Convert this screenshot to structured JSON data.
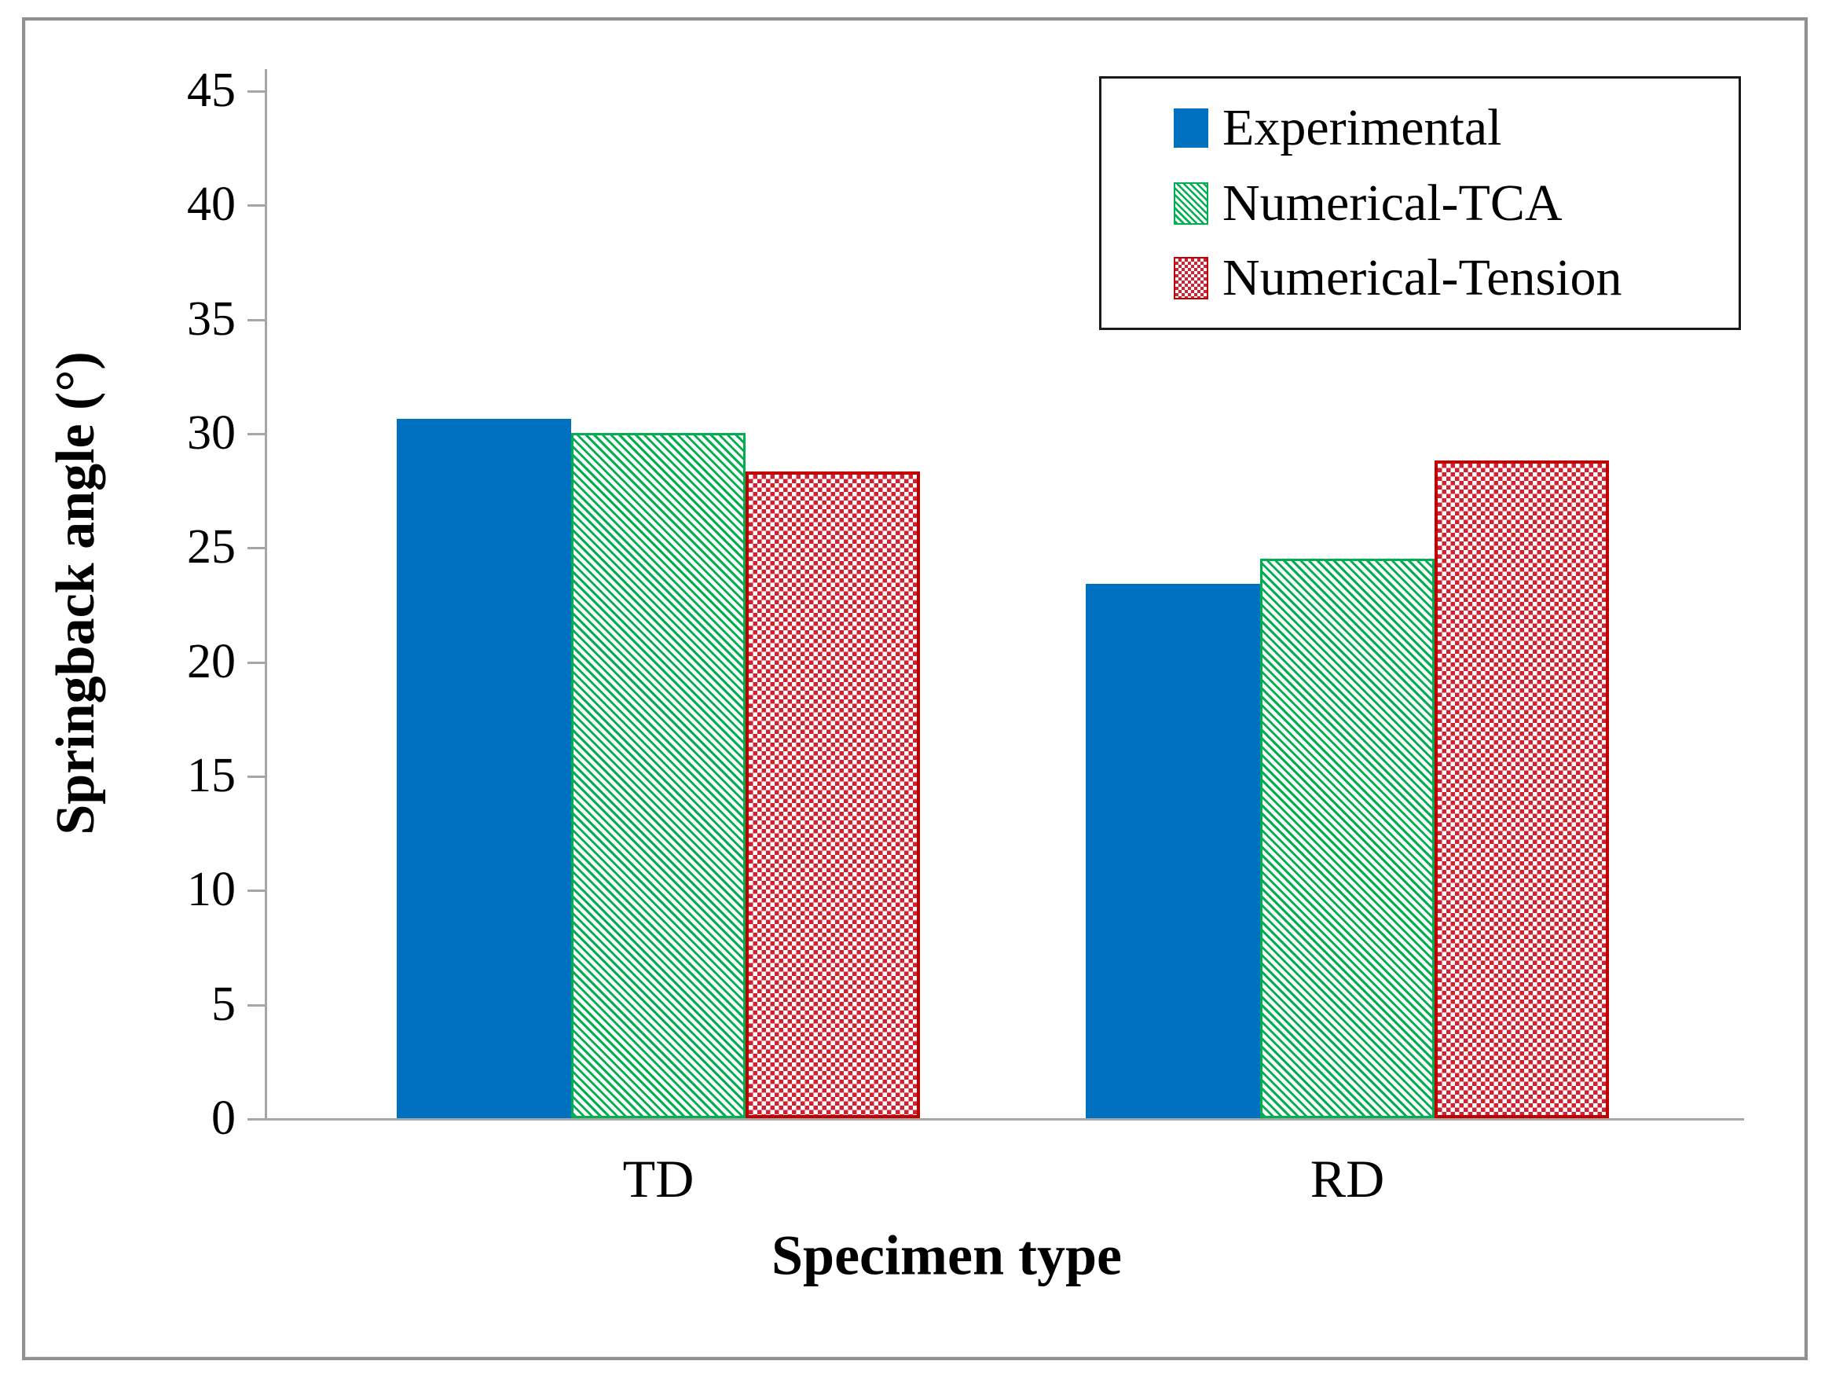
{
  "figure": {
    "background": "#ffffff",
    "frame_border_color": "#8e9094",
    "axis_color": "#a6a6a6",
    "text_color": "#000000",
    "legend_border_color": "#1a1a1a"
  },
  "colors": {
    "experimental_blue": "#0070c0",
    "numerical_tca_green": "#00b050",
    "numerical_tension_red": "#c00000",
    "numerical_tension_red_fill": "#cf2130"
  },
  "chart_data": {
    "type": "bar",
    "title": "",
    "xlabel": "Specimen type",
    "ylabel": "Springback angle (°)",
    "categories": [
      "TD",
      "RD"
    ],
    "series": [
      {
        "name": "Experimental",
        "pattern": "solid",
        "color": "#0070c0",
        "values": [
          30.6,
          23.4
        ]
      },
      {
        "name": "Numerical-TCA",
        "pattern": "diagonal-hatch",
        "color": "#00b050",
        "values": [
          30.0,
          24.5
        ]
      },
      {
        "name": "Numerical-Tension",
        "pattern": "checker",
        "color": "#c00000",
        "values": [
          28.3,
          28.8
        ]
      }
    ],
    "ylim": [
      0,
      45
    ],
    "yticks": [
      0,
      5,
      10,
      15,
      20,
      25,
      30,
      35,
      40,
      45
    ],
    "grid": false,
    "legend_position": "top-right"
  }
}
